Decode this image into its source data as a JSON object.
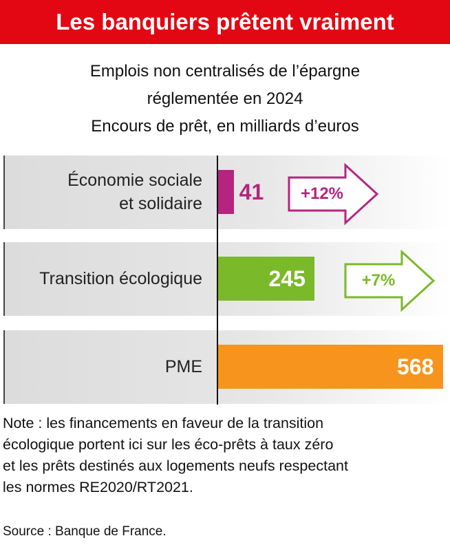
{
  "chart_data": {
    "type": "bar",
    "title": "Les banquiers prêtent vraiment",
    "subtitle": "Emplois non centralisés de l’épargne\nréglementée en 2024\nEncours de prêt, en milliards d’euros",
    "categories": [
      "Économie sociale\net solidaire",
      "Transition écologique",
      "PME"
    ],
    "values": [
      41,
      245,
      568
    ],
    "colors": [
      "#b5247f",
      "#7ab929",
      "#f7941d"
    ],
    "changes": [
      "+12%",
      "+7%",
      null
    ],
    "note": "Note : les financements en faveur de la transition\nécologique portent ici sur les éco-prêts à taux zéro\net les prêts destinés aux logements neufs respectant\nles normes RE2020/RT2021.",
    "source": "Source : Banque de France."
  }
}
